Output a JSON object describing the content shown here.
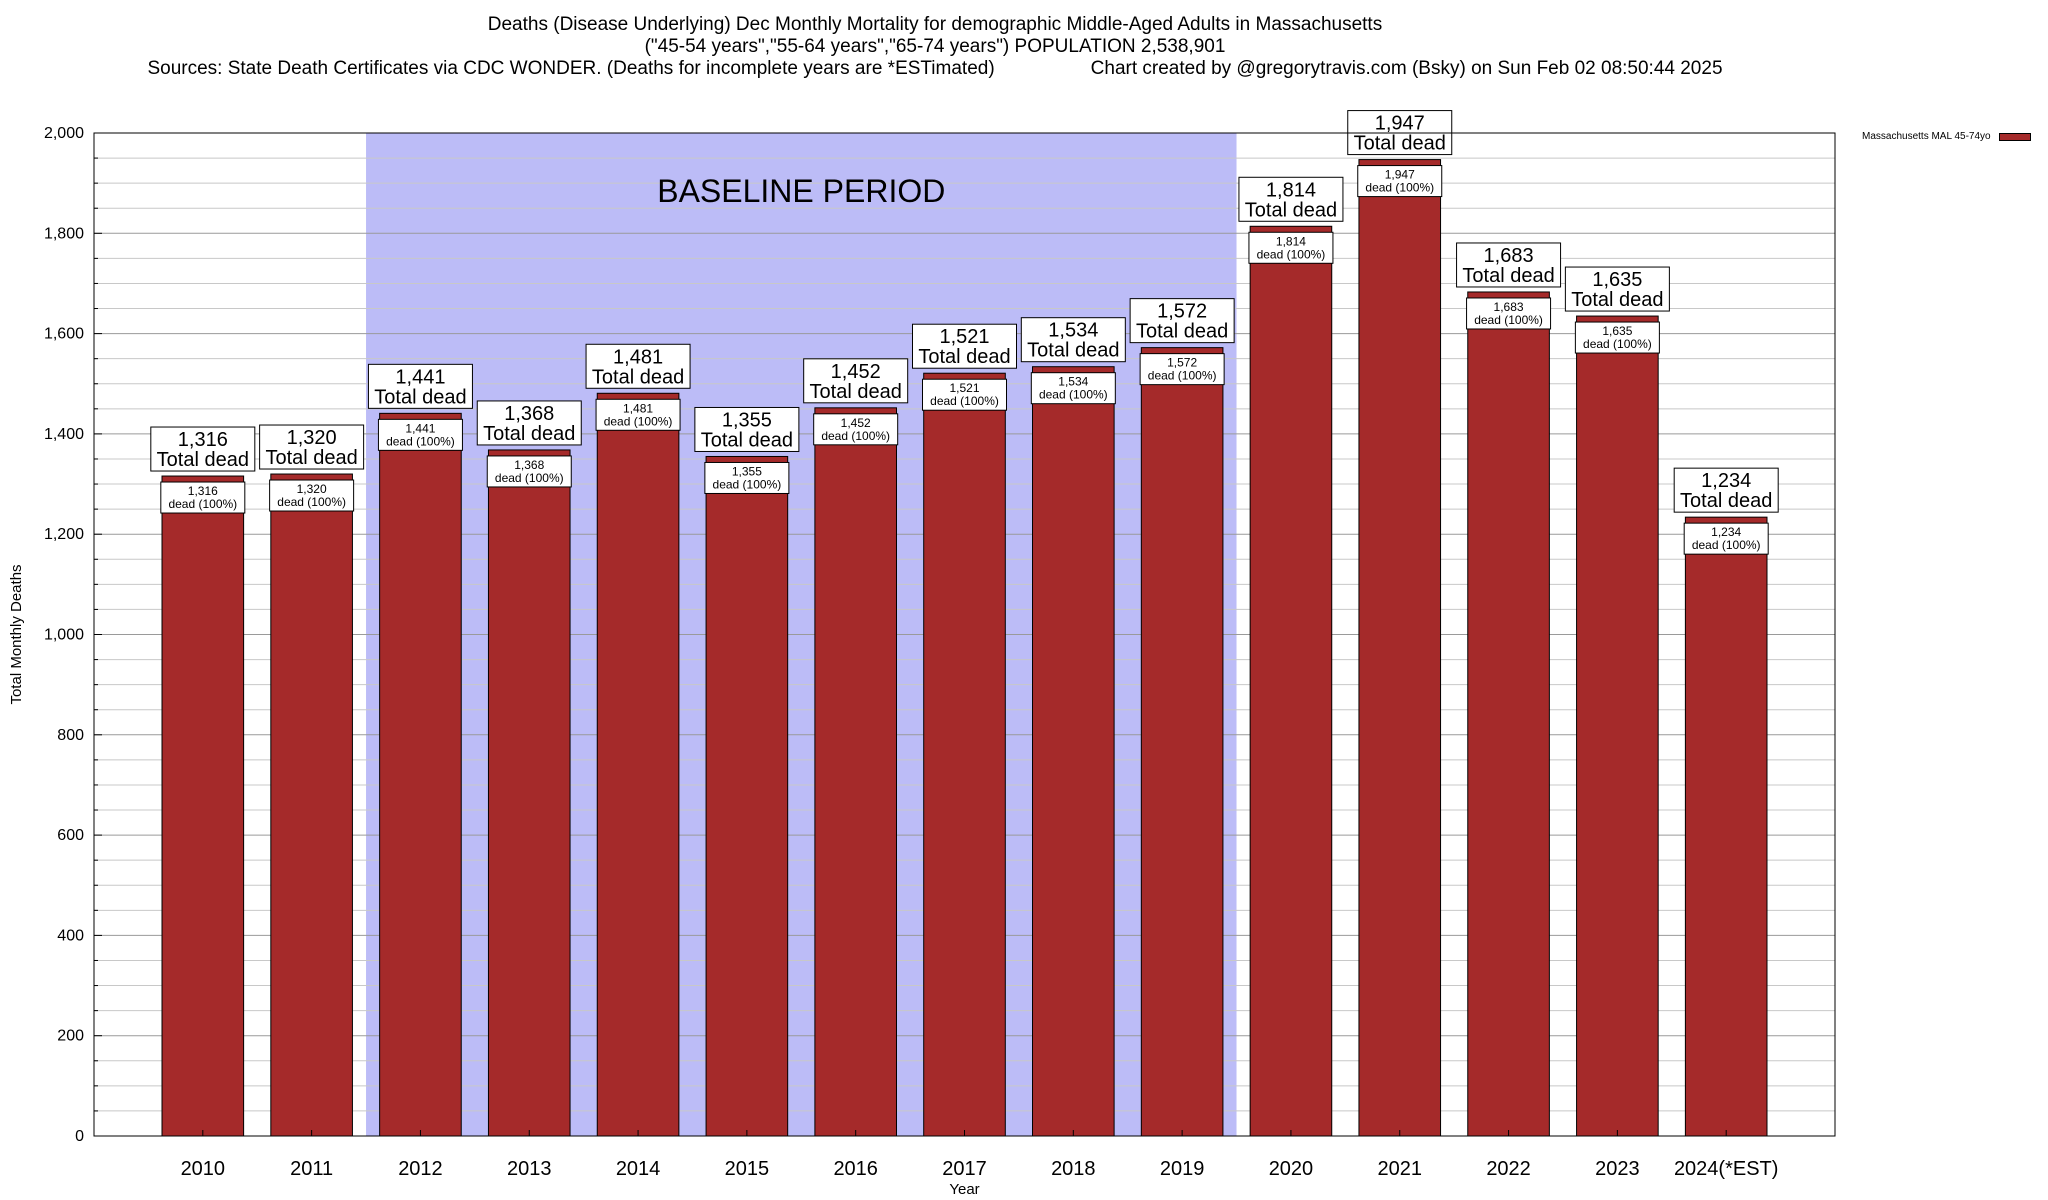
{
  "header": {
    "title": "Deaths (Disease Underlying) Dec Monthly Mortality for demographic Middle-Aged Adults in Massachusetts",
    "subtitle": "(\"45-54 years\",\"55-64 years\",\"65-74 years\") POPULATION 2,538,901",
    "sources": "Sources: State Death Certificates via CDC WONDER. (Deaths for incomplete years are *ESTimated)",
    "credit": "Chart created by @gregorytravis.com (Bsky) on Sun Feb 02 08:50:44 2025"
  },
  "chart_data": {
    "type": "bar",
    "title": "Deaths (Disease Underlying) Dec Monthly Mortality for demographic Middle-Aged Adults in Massachusetts",
    "xlabel": "Year",
    "ylabel": "Total Monthly Deaths",
    "ylim": [
      0,
      2000
    ],
    "y_ticks": [
      0,
      200,
      400,
      600,
      800,
      1000,
      1200,
      1400,
      1600,
      1800,
      2000
    ],
    "y_tick_labels": [
      "0",
      "200",
      "400",
      "600",
      "800",
      "1,000",
      "1,200",
      "1,400",
      "1,600",
      "1,800",
      "2,000"
    ],
    "categories": [
      "2010",
      "2011",
      "2012",
      "2013",
      "2014",
      "2015",
      "2016",
      "2017",
      "2018",
      "2019",
      "2020",
      "2021",
      "2022",
      "2023",
      "2024(*EST)"
    ],
    "series": [
      {
        "name": "Massachusetts MAL 45-74yo",
        "color": "#a52a2a",
        "values": [
          1316,
          1320,
          1441,
          1368,
          1481,
          1355,
          1452,
          1521,
          1534,
          1572,
          1814,
          1947,
          1683,
          1635,
          1234
        ]
      }
    ],
    "value_labels": [
      "1,316",
      "1,320",
      "1,441",
      "1,368",
      "1,481",
      "1,355",
      "1,452",
      "1,521",
      "1,534",
      "1,572",
      "1,814",
      "1,947",
      "1,683",
      "1,635",
      "1,234"
    ],
    "top_label_suffix": "Total dead",
    "inner_label_suffix": "dead (100%)",
    "baseline": {
      "label": "BASELINE PERIOD",
      "start": "2012",
      "end": "2019",
      "color": "#bcbcf7"
    },
    "grid": true,
    "legend_position": "top-right"
  }
}
